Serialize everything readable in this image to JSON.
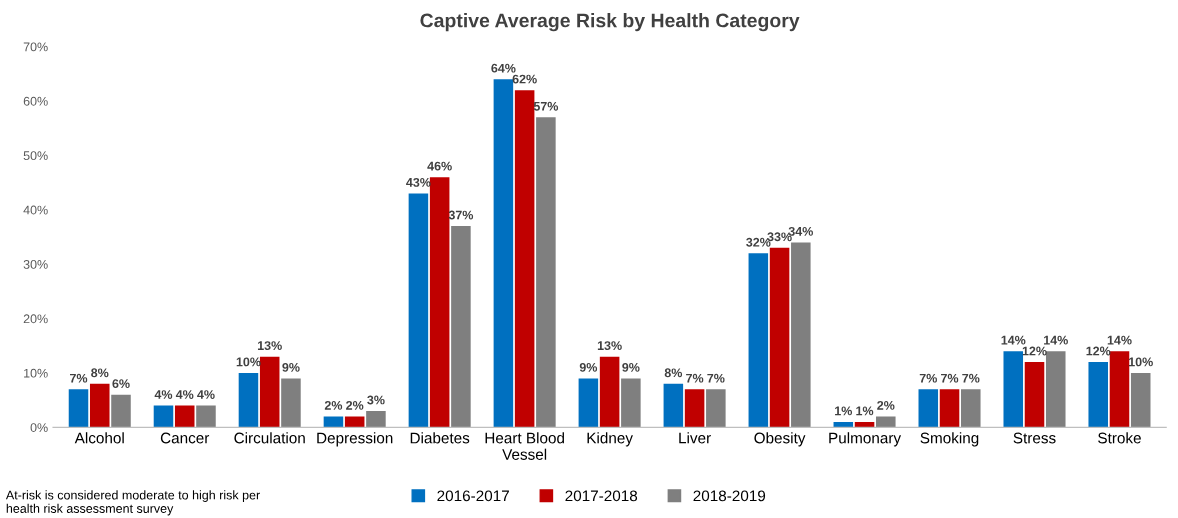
{
  "chart_data": {
    "type": "bar",
    "title": "Captive Average Risk by Health Category",
    "categories": [
      "Alcohol",
      "Cancer",
      "Circulation",
      "Depression",
      "Diabetes",
      "Heart Blood\nVessel",
      "Kidney",
      "Liver",
      "Obesity",
      "Pulmonary",
      "Smoking",
      "Stress",
      "Stroke"
    ],
    "series": [
      {
        "name": "2016-2017",
        "color": "#0070c0",
        "values": [
          7,
          4,
          10,
          2,
          43,
          64,
          9,
          8,
          32,
          1,
          7,
          14,
          12
        ],
        "value_labels": [
          "7%",
          "4%",
          "10%",
          "2%",
          "43%",
          "64%",
          "9%",
          "8%",
          "32%",
          "1%",
          "7%",
          "14%",
          "12%"
        ]
      },
      {
        "name": "2017-2018",
        "color": "#c00000",
        "values": [
          8,
          4,
          13,
          2,
          46,
          62,
          13,
          7,
          33,
          1,
          7,
          12,
          14
        ],
        "value_labels": [
          "8%",
          "4%",
          "13%",
          "2%",
          "46%",
          "62%",
          "13%",
          "7%",
          "33%",
          "1%",
          "7%",
          "12%",
          "14%"
        ]
      },
      {
        "name": "2018-2019",
        "color": "#7f7f7f",
        "values": [
          6,
          4,
          9,
          3,
          37,
          57,
          9,
          7,
          34,
          2,
          7,
          14,
          10
        ],
        "value_labels": [
          "6%",
          "4%",
          "9%",
          "3%",
          "37%",
          "57%",
          "9%",
          "7%",
          "34%",
          "2%",
          "7%",
          "14%",
          "10%"
        ]
      }
    ],
    "ylim": [
      0,
      70
    ],
    "yticks": [
      {
        "value": 0,
        "label": "0%"
      },
      {
        "value": 10,
        "label": "10%"
      },
      {
        "value": 20,
        "label": "20%"
      },
      {
        "value": 30,
        "label": "30%"
      },
      {
        "value": 40,
        "label": "40%"
      },
      {
        "value": 50,
        "label": "50%"
      },
      {
        "value": 60,
        "label": "60%"
      },
      {
        "value": 70,
        "label": "70%"
      }
    ],
    "legend": "bottom",
    "annotations": [
      "At-risk is considered moderate to high risk per\nhealth risk assessment survey"
    ]
  }
}
